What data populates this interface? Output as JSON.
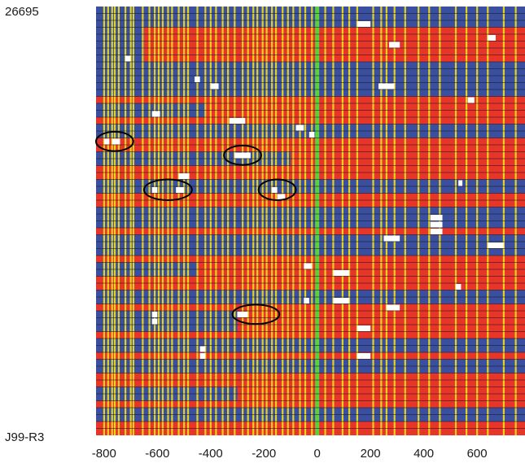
{
  "chart_data": {
    "type": "heatmap",
    "title": "",
    "xlabel": "",
    "ylabel": "",
    "xlim": [
      -830,
      780
    ],
    "x_ticks": [
      "-800",
      "-600",
      "-400",
      "-200",
      "0",
      "200",
      "400",
      "600"
    ],
    "x_tick_values": [
      -800,
      -600,
      -400,
      -200,
      0,
      200,
      400,
      600
    ],
    "row_label_top": "26695",
    "row_label_bottom": "J99-R3",
    "row_count": 62,
    "colors": {
      "state_a": "#e8352a",
      "state_b": "#3a4fa0",
      "missing": "#ffffff",
      "snp_line": "#f2e01c",
      "origin_line": "#5dd13a",
      "row_separator": "#1a1a1a",
      "circle": "#000000"
    },
    "blue_rows": [
      {
        "start": 0,
        "end": 2,
        "blue_until": 780
      },
      {
        "start": 3,
        "end": 7,
        "blue_until": -650
      },
      {
        "start": 8,
        "end": 10,
        "blue_until": 780
      },
      {
        "start": 11,
        "end": 12,
        "blue_until": 780
      },
      {
        "start": 14,
        "end": 15,
        "blue_until": -420
      },
      {
        "start": 17,
        "end": 18,
        "blue_until": 780
      },
      {
        "start": 21,
        "end": 22,
        "blue_until": -100
      },
      {
        "start": 25,
        "end": 26,
        "blue_until": 780
      },
      {
        "start": 29,
        "end": 31,
        "blue_until": 780
      },
      {
        "start": 33,
        "end": 35,
        "blue_until": 780
      },
      {
        "start": 37,
        "end": 38,
        "blue_until": -450
      },
      {
        "start": 41,
        "end": 42,
        "blue_until": 780
      },
      {
        "start": 44,
        "end": 46,
        "blue_until": -300
      },
      {
        "start": 48,
        "end": 49,
        "blue_until": 780
      },
      {
        "start": 51,
        "end": 52,
        "blue_until": 780
      },
      {
        "start": 55,
        "end": 56,
        "blue_until": -300
      },
      {
        "start": 58,
        "end": 59,
        "blue_until": 780
      }
    ],
    "yellow_lines": [
      -800,
      -785,
      -770,
      -760,
      -745,
      -720,
      -700,
      -690,
      -655,
      -630,
      -610,
      -595,
      -580,
      -560,
      -545,
      -520,
      -500,
      -485,
      -450,
      -420,
      -400,
      -380,
      -355,
      -335,
      -310,
      -280,
      -260,
      -240,
      -225,
      -205,
      -190,
      -170,
      -155,
      -130,
      -110,
      -90,
      -65,
      -45,
      -20,
      30,
      60,
      95,
      120,
      150,
      210,
      240,
      260,
      290,
      330,
      380,
      420,
      460,
      520,
      560,
      600,
      640,
      700,
      745
    ],
    "origin_line_x": 0,
    "white_blocks": [
      {
        "row": 2,
        "x0": 150,
        "x1": 200
      },
      {
        "row": 4,
        "x0": 640,
        "x1": 670
      },
      {
        "row": 5,
        "x0": 270,
        "x1": 310
      },
      {
        "row": 7,
        "x0": -720,
        "x1": -700
      },
      {
        "row": 10,
        "x0": -460,
        "x1": -440
      },
      {
        "row": 11,
        "x0": -400,
        "x1": -370
      },
      {
        "row": 11,
        "x0": 230,
        "x1": 290
      },
      {
        "row": 13,
        "x0": 565,
        "x1": 590
      },
      {
        "row": 15,
        "x0": -620,
        "x1": -590
      },
      {
        "row": 16,
        "x0": -330,
        "x1": -270
      },
      {
        "row": 17,
        "x0": -80,
        "x1": -50
      },
      {
        "row": 18,
        "x0": -30,
        "x1": -10
      },
      {
        "row": 19,
        "x0": -800,
        "x1": -780
      },
      {
        "row": 19,
        "x0": -770,
        "x1": -740
      },
      {
        "row": 21,
        "x0": -310,
        "x1": -250
      },
      {
        "row": 24,
        "x0": -520,
        "x1": -480
      },
      {
        "row": 25,
        "x0": 530,
        "x1": 545
      },
      {
        "row": 26,
        "x0": -620,
        "x1": -600
      },
      {
        "row": 26,
        "x0": -530,
        "x1": -500
      },
      {
        "row": 26,
        "x0": -170,
        "x1": -150
      },
      {
        "row": 27,
        "x0": -150,
        "x1": -120
      },
      {
        "row": 30,
        "x0": 425,
        "x1": 470
      },
      {
        "row": 31,
        "x0": 425,
        "x1": 470
      },
      {
        "row": 32,
        "x0": 425,
        "x1": 470
      },
      {
        "row": 33,
        "x0": 250,
        "x1": 310
      },
      {
        "row": 34,
        "x0": 640,
        "x1": 700
      },
      {
        "row": 37,
        "x0": -50,
        "x1": -20
      },
      {
        "row": 38,
        "x0": 60,
        "x1": 120
      },
      {
        "row": 40,
        "x0": 520,
        "x1": 540
      },
      {
        "row": 42,
        "x0": -50,
        "x1": -30
      },
      {
        "row": 42,
        "x0": 60,
        "x1": 120
      },
      {
        "row": 43,
        "x0": 260,
        "x1": 310
      },
      {
        "row": 44,
        "x0": -620,
        "x1": -600
      },
      {
        "row": 44,
        "x0": -300,
        "x1": -260
      },
      {
        "row": 45,
        "x0": -620,
        "x1": -600
      },
      {
        "row": 46,
        "x0": 150,
        "x1": 200
      },
      {
        "row": 49,
        "x0": -440,
        "x1": -420
      },
      {
        "row": 50,
        "x0": -440,
        "x1": -420
      },
      {
        "row": 50,
        "x0": 150,
        "x1": 200
      }
    ],
    "highlight_circles": [
      {
        "cx": -760,
        "row": 19.5,
        "rx": 70,
        "ry": 1.4
      },
      {
        "cx": -280,
        "row": 21.5,
        "rx": 70,
        "ry": 1.4
      },
      {
        "cx": -560,
        "row": 26.5,
        "rx": 90,
        "ry": 1.5
      },
      {
        "cx": -150,
        "row": 26.5,
        "rx": 70,
        "ry": 1.5
      },
      {
        "cx": -230,
        "row": 44.5,
        "rx": 88,
        "ry": 1.4
      }
    ]
  }
}
